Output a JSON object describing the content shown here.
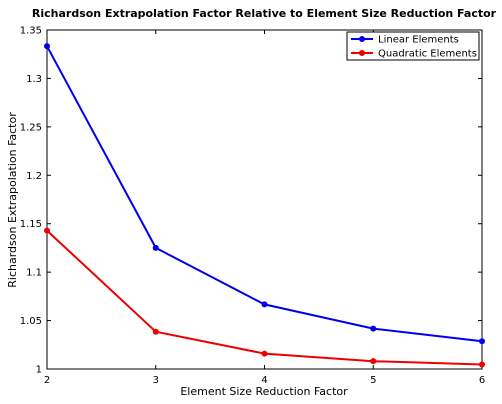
{
  "chart_data": {
    "type": "line",
    "title": "Richardson Extrapolation Factor Relative to Element Size Reduction Factor",
    "xlabel": "Element Size Reduction Factor",
    "ylabel": "Richardson Extrapolation Factor",
    "x": [
      2,
      3,
      4,
      5,
      6
    ],
    "xlim": [
      2,
      6
    ],
    "ylim": [
      1,
      1.35
    ],
    "xticks": [
      "2",
      "3",
      "4",
      "5",
      "6"
    ],
    "yticks": [
      "1",
      "1.05",
      "1.1",
      "1.15",
      "1.2",
      "1.25",
      "1.3",
      "1.35"
    ],
    "grid": false,
    "legend_position": "top-right",
    "series": [
      {
        "name": "Linear Elements",
        "color": "#0000ee",
        "values": [
          1.3333,
          1.125,
          1.0667,
          1.0417,
          1.0286
        ]
      },
      {
        "name": "Quadratic Elements",
        "color": "#ee0000",
        "values": [
          1.1429,
          1.0385,
          1.0159,
          1.0081,
          1.0046
        ]
      }
    ]
  }
}
